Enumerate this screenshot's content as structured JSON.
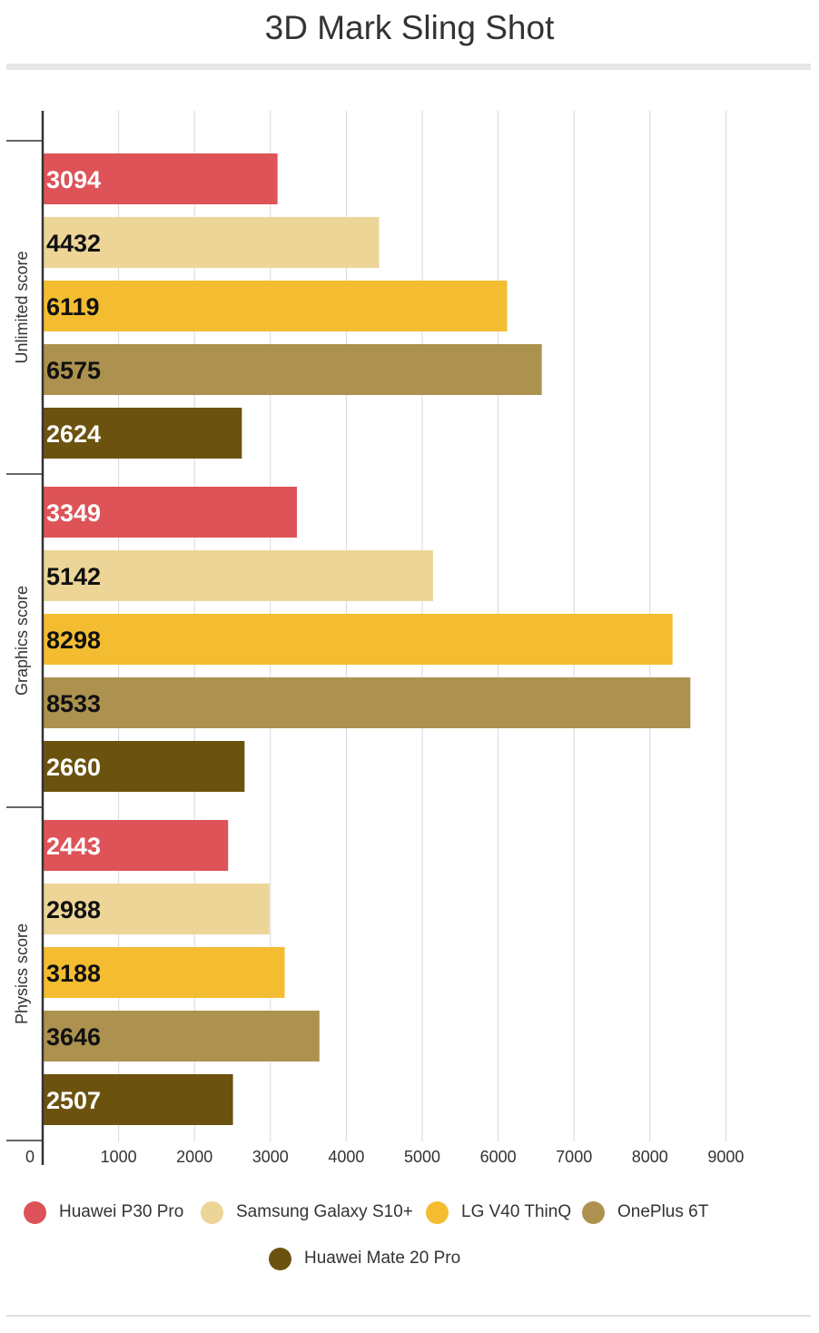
{
  "title": "3D Mark Sling Shot",
  "chart_data": {
    "type": "bar",
    "orientation": "horizontal",
    "title": "3D Mark Sling Shot",
    "categories": [
      "Unlimited score",
      "Graphics score",
      "Physics score"
    ],
    "series": [
      {
        "name": "Huawei P30 Pro",
        "color": "#dd5357",
        "label_color": "#ffffff",
        "values": [
          3094,
          3349,
          2443
        ]
      },
      {
        "name": "Samsung Galaxy S10+",
        "color": "#edd597",
        "label_color": "#111111",
        "values": [
          4432,
          5142,
          2988
        ]
      },
      {
        "name": "LG V40 ThinQ",
        "color": "#f4bd31",
        "label_color": "#111111",
        "values": [
          6119,
          8298,
          3188
        ]
      },
      {
        "name": "OnePlus 6T",
        "color": "#ad924f",
        "label_color": "#111111",
        "values": [
          6575,
          8533,
          3646
        ]
      },
      {
        "name": "Huawei Mate 20 Pro",
        "color": "#6b520f",
        "label_color": "#ffffff",
        "values": [
          2624,
          2660,
          2507
        ]
      }
    ],
    "x_ticks": [
      "0",
      "1000",
      "2000",
      "3000",
      "4000",
      "5000",
      "6000",
      "7000",
      "8000",
      "9000"
    ],
    "xlim": [
      0,
      9000
    ],
    "grid": true,
    "legend_position": "bottom"
  }
}
